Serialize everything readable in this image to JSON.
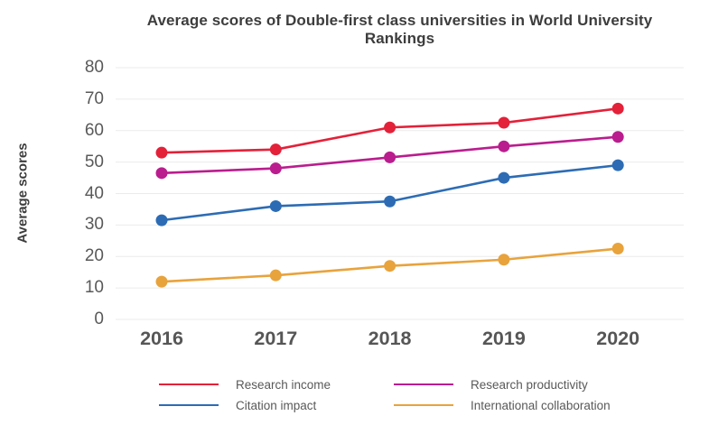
{
  "title": "Average scores of Double-first class universities in World University Rankings",
  "colors": {
    "background": "#ffffff",
    "gridline": "#ebebeb",
    "title_text": "#3d3d3d",
    "tick_text": "#595959",
    "year_text": "#565656",
    "legend_text": "#595959"
  },
  "chart_data": {
    "type": "line",
    "title": "Average scores of Double-first class universities in World University Rankings",
    "xlabel": "",
    "ylabel": "Average scores",
    "categories": [
      "2016",
      "2017",
      "2018",
      "2019",
      "2020"
    ],
    "series": [
      {
        "name": "Research income",
        "color": "#e32139",
        "values": [
          53,
          54,
          61,
          62.5,
          67
        ]
      },
      {
        "name": "Research productivity",
        "color": "#ba1d8e",
        "values": [
          46.5,
          48,
          51.5,
          55,
          58
        ]
      },
      {
        "name": "Citation impact",
        "color": "#2d6cb4",
        "values": [
          31.5,
          36,
          37.5,
          45,
          49
        ]
      },
      {
        "name": "International collaboration",
        "color": "#e8a33c",
        "values": [
          12,
          14,
          17,
          19,
          22.5
        ]
      }
    ],
    "ylim": [
      0,
      80
    ],
    "ytick_step": 10,
    "ytick_labels": [
      "0",
      "10",
      "20",
      "30",
      "40",
      "50",
      "60",
      "70",
      "80"
    ],
    "grid": true,
    "marker": "circle",
    "legend_position": "bottom",
    "legend_rows": [
      [
        "Research income",
        "Research productivity"
      ],
      [
        "Citation impact",
        "International collaboration"
      ]
    ]
  }
}
